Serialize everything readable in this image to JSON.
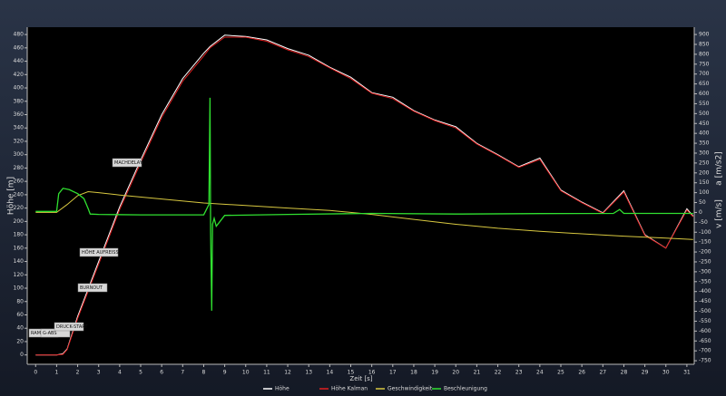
{
  "chart_data": {
    "type": "line",
    "xlabel": "Zeit [s]",
    "ylabel": "Höhe [m]",
    "y2label": [
      "v [m/s]",
      "a [m/s2]"
    ],
    "xlim": [
      -0.4,
      31.35
    ],
    "ylim": [
      -14,
      491
    ],
    "y2lim": [
      -768,
      937
    ],
    "xticks": [
      0,
      1,
      2,
      3,
      4,
      5,
      6,
      7,
      8,
      9,
      10,
      11,
      12,
      13,
      14,
      15,
      16,
      17,
      18,
      19,
      20,
      21,
      22,
      23,
      24,
      25,
      26,
      27,
      28,
      29,
      30,
      31
    ],
    "yticks": [
      0,
      20,
      40,
      60,
      80,
      100,
      120,
      140,
      160,
      180,
      200,
      220,
      240,
      260,
      280,
      300,
      320,
      340,
      360,
      380,
      400,
      420,
      440,
      460,
      480
    ],
    "y2ticks": [
      -750,
      -700,
      -650,
      -600,
      -550,
      -500,
      -450,
      -400,
      -350,
      -300,
      -250,
      -200,
      -150,
      -100,
      -50,
      0,
      50,
      100,
      150,
      200,
      250,
      300,
      350,
      400,
      450,
      500,
      550,
      600,
      650,
      700,
      750,
      800,
      850,
      900
    ],
    "series": [
      {
        "name": "Höhe",
        "color": "#ffffff",
        "x": [
          0,
          1,
          1.3,
          1.5,
          2,
          3,
          4,
          5,
          6,
          7,
          8,
          8.3,
          9,
          10,
          11,
          12,
          13,
          14,
          15,
          16,
          17,
          18,
          19,
          20,
          21,
          22,
          23,
          24,
          25,
          26,
          27,
          28,
          29,
          30,
          31,
          31.3
        ],
        "values": [
          0,
          0,
          2,
          9,
          58,
          140,
          222,
          292,
          360,
          414,
          452,
          462,
          479,
          477,
          472,
          459,
          449,
          431,
          416,
          393,
          386,
          366,
          352,
          342,
          317,
          300,
          282,
          295,
          247,
          229,
          213,
          246,
          180,
          160,
          219,
          208
        ]
      },
      {
        "name": "Höhe Kalman",
        "color": "#e02020",
        "x": [
          0,
          1,
          1.3,
          1.5,
          2,
          3,
          4,
          5,
          6,
          7,
          8,
          8.3,
          9,
          10,
          11,
          12,
          13,
          14,
          15,
          16,
          17,
          18,
          19,
          20,
          21,
          22,
          23,
          24,
          25,
          26,
          27,
          28,
          29,
          30,
          31,
          31.3
        ],
        "values": [
          0,
          0,
          1,
          8,
          55,
          136,
          218,
          288,
          356,
          410,
          448,
          460,
          476,
          476,
          470,
          457,
          447,
          430,
          414,
          392,
          384,
          365,
          351,
          340,
          316,
          299,
          281,
          293,
          246,
          228,
          212,
          244,
          179,
          160,
          217,
          207
        ]
      },
      {
        "name": "Geschwindigkeit",
        "color": "#d8c840",
        "axis": "y2",
        "x": [
          0,
          1,
          1.5,
          2,
          2.5,
          3,
          4,
          6,
          8,
          10,
          12,
          14,
          16,
          18,
          20,
          22,
          24,
          26,
          28,
          30,
          31.3
        ],
        "values": [
          0,
          0,
          40,
          85,
          105,
          100,
          88,
          68,
          48,
          35,
          22,
          10,
          -10,
          -35,
          -60,
          -80,
          -95,
          -108,
          -120,
          -130,
          -137
        ]
      },
      {
        "name": "Beschleunigung",
        "color": "#30e030",
        "axis": "y2",
        "x": [
          0,
          1,
          1.1,
          1.3,
          1.6,
          2,
          2.3,
          2.5,
          2.6,
          3,
          5,
          8,
          8.25,
          8.3,
          8.33,
          8.38,
          8.42,
          8.5,
          8.6,
          9,
          12,
          16,
          20,
          24,
          27.5,
          27.8,
          28,
          31.3
        ],
        "values": [
          5,
          5,
          95,
          122,
          115,
          95,
          70,
          20,
          -8,
          -10,
          -12,
          -12,
          40,
          580,
          -100,
          -497,
          -60,
          -30,
          -70,
          -15,
          -10,
          -5,
          -8,
          -6,
          -5,
          15,
          -5,
          -5
        ]
      }
    ],
    "annotations": [
      "RAMP",
      "G-ABS",
      "DRUCK-START",
      "BURNOUT",
      "HÖHE AUFREISS",
      "MACHDELAY"
    ]
  }
}
